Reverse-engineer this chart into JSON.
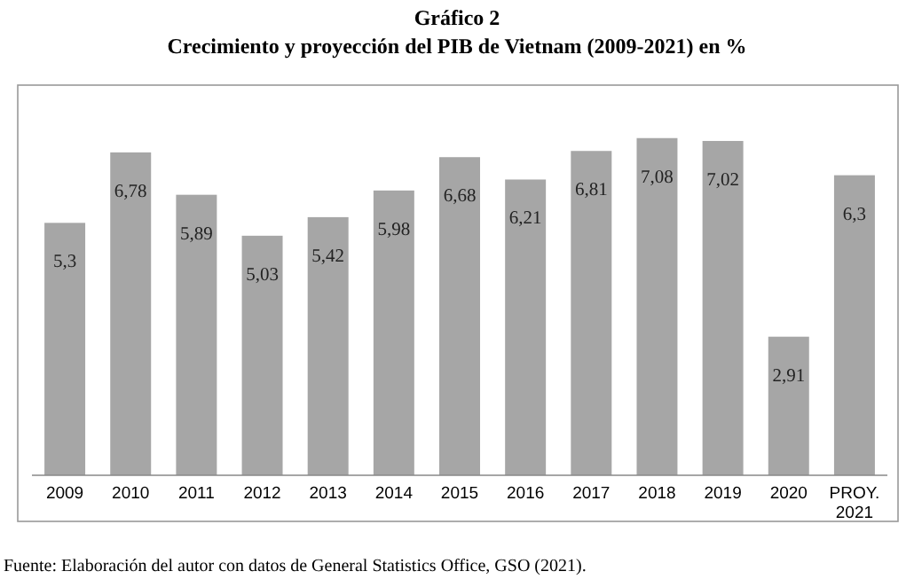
{
  "chart_data": {
    "type": "bar",
    "title": "Gráfico 2",
    "subtitle": "Crecimiento y proyección del PIB de Vietnam (2009-2021) en %",
    "categories": [
      "2009",
      "2010",
      "2011",
      "2012",
      "2013",
      "2014",
      "2015",
      "2016",
      "2017",
      "2018",
      "2019",
      "2020",
      "PROY. 2021"
    ],
    "values": [
      5.3,
      6.78,
      5.89,
      5.03,
      5.42,
      5.98,
      6.68,
      6.21,
      6.81,
      7.08,
      7.02,
      2.91,
      6.3
    ],
    "color": "#a6a6a6",
    "value_labels": [
      "5,3",
      "6,78",
      "5,89",
      "5,03",
      "5,42",
      "5,98",
      "6,68",
      "6,21",
      "6,81",
      "7,08",
      "7,02",
      "2,91",
      "6,3"
    ],
    "annotations": [
      "Fuente: Elaboración del autor con datos de General Statistics Office, GSO (2021)."
    ]
  }
}
